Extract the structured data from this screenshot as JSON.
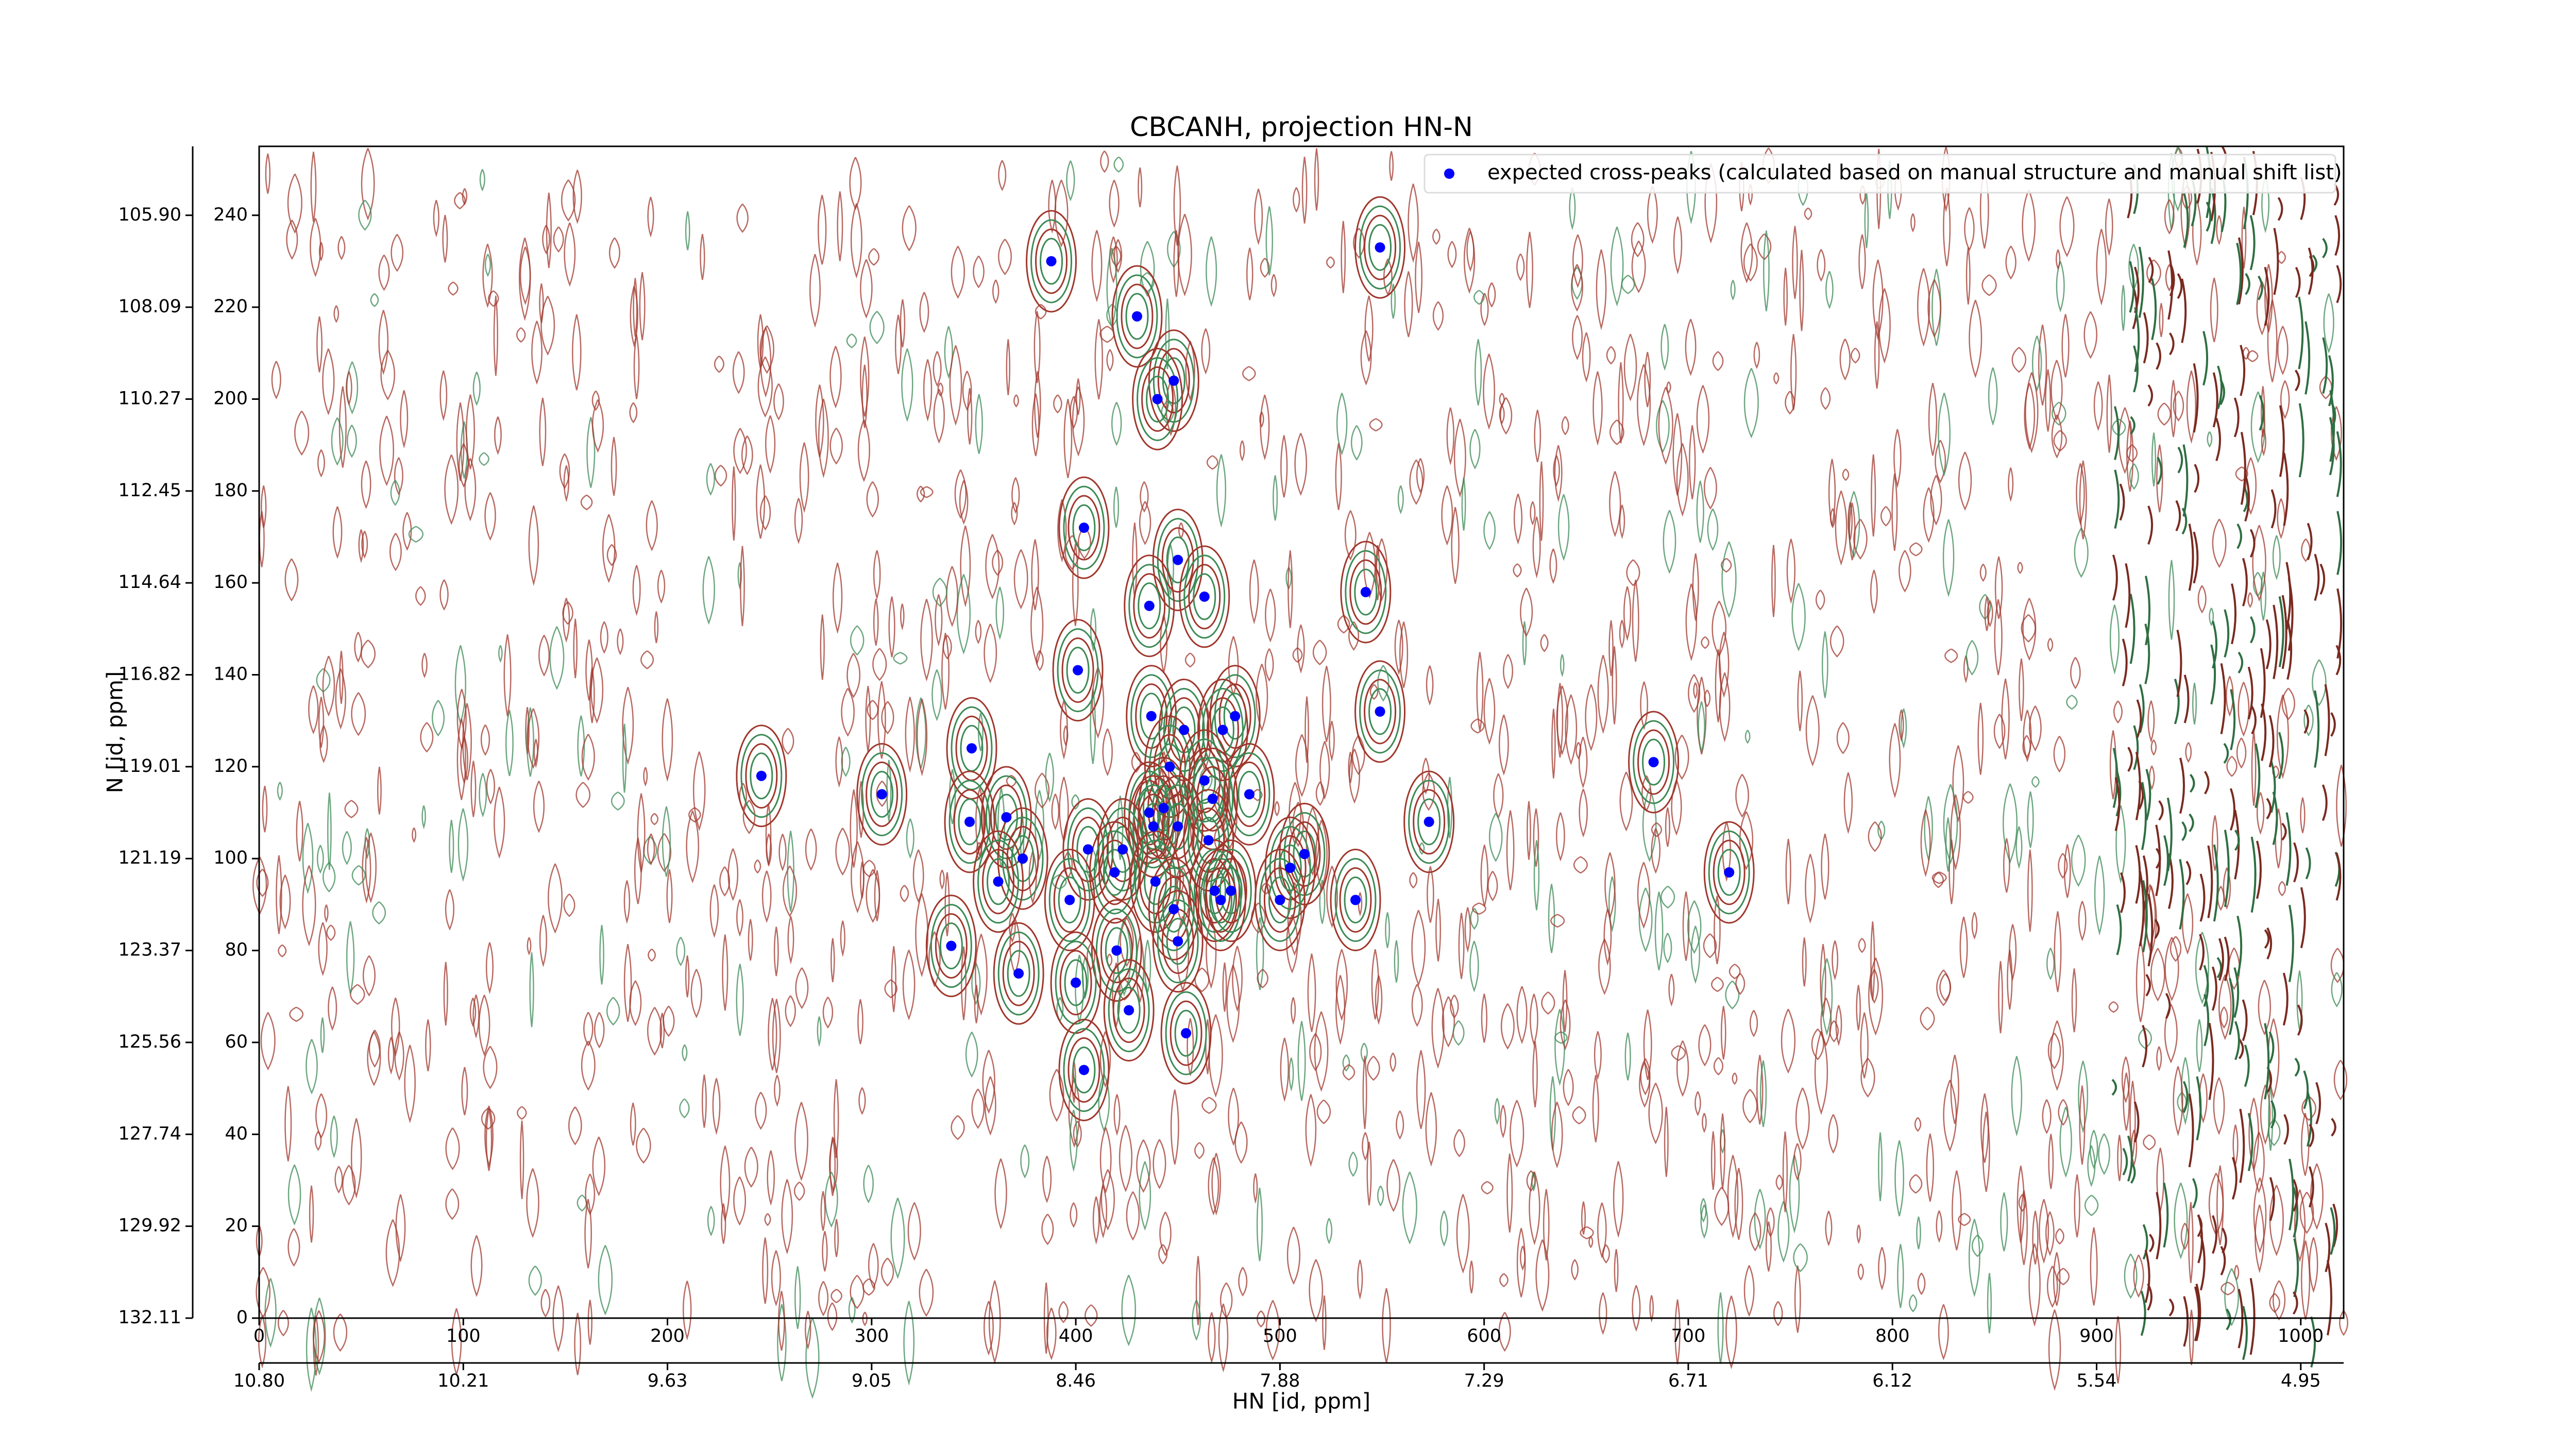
{
  "chart_data": {
    "type": "scatter",
    "title": "CBCANH, projection HN-N",
    "xlabel": "HN [id, ppm]",
    "ylabel": "N [id, ppm]",
    "xlim": [
      0,
      1021
    ],
    "ylim": [
      0,
      255
    ],
    "xticks": [
      0,
      100,
      200,
      300,
      400,
      500,
      600,
      700,
      800,
      900,
      1000
    ],
    "x2ticks": [
      {
        "value": 0,
        "label": "10.80"
      },
      {
        "value": 100,
        "label": "10.21"
      },
      {
        "value": 200,
        "label": "9.63"
      },
      {
        "value": 300,
        "label": "9.05"
      },
      {
        "value": 400,
        "label": "8.46"
      },
      {
        "value": 500,
        "label": "7.88"
      },
      {
        "value": 600,
        "label": "7.29"
      },
      {
        "value": 700,
        "label": "6.71"
      },
      {
        "value": 800,
        "label": "6.12"
      },
      {
        "value": 900,
        "label": "5.54"
      },
      {
        "value": 1000,
        "label": "4.95"
      }
    ],
    "yticks": [
      0,
      20,
      40,
      60,
      80,
      100,
      120,
      140,
      160,
      180,
      200,
      220,
      240
    ],
    "y2ticks": [
      {
        "value": 0,
        "label": "132.11"
      },
      {
        "value": 20,
        "label": "129.92"
      },
      {
        "value": 40,
        "label": "127.74"
      },
      {
        "value": 60,
        "label": "125.56"
      },
      {
        "value": 80,
        "label": "123.37"
      },
      {
        "value": 100,
        "label": "121.19"
      },
      {
        "value": 120,
        "label": "119.01"
      },
      {
        "value": 140,
        "label": "116.82"
      },
      {
        "value": 160,
        "label": "114.64"
      },
      {
        "value": 180,
        "label": "112.45"
      },
      {
        "value": 200,
        "label": "110.27"
      },
      {
        "value": 220,
        "label": "108.09"
      },
      {
        "value": 240,
        "label": "105.90"
      }
    ],
    "legend": "upper right",
    "series": [
      {
        "name": "expected cross-peaks (calculated based on manual structure and manual shift list)",
        "color": "#0000ff",
        "x": [
          388,
          549,
          430,
          448,
          440,
          404,
          450,
          436,
          463,
          542,
          401,
          549,
          437,
          478,
          453,
          472,
          349,
          246,
          683,
          446,
          305,
          463,
          485,
          467,
          436,
          443,
          348,
          366,
          573,
          438,
          450,
          465,
          374,
          406,
          423,
          512,
          419,
          505,
          720,
          362,
          439,
          468,
          476,
          397,
          471,
          500,
          537,
          448,
          339,
          450,
          420,
          372,
          400,
          426,
          454,
          404
        ],
        "values": [
          230,
          233,
          218,
          204,
          200,
          172,
          165,
          155,
          157,
          158,
          141,
          132,
          131,
          131,
          128,
          128,
          124,
          118,
          121,
          120,
          114,
          117,
          114,
          113,
          110,
          111,
          108,
          109,
          108,
          107,
          107,
          104,
          100,
          102,
          102,
          101,
          97,
          98,
          97,
          95,
          95,
          93,
          93,
          91,
          91,
          91,
          91,
          89,
          81,
          82,
          80,
          75,
          73,
          67,
          62,
          54
        ]
      }
    ]
  }
}
